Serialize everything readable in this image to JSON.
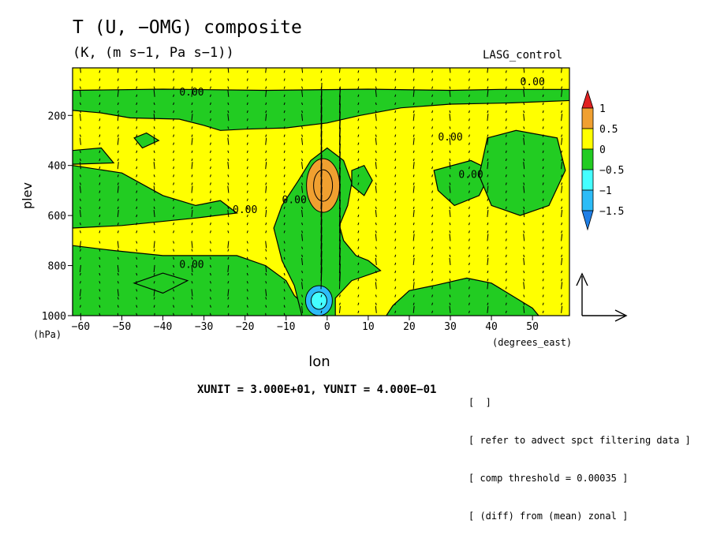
{
  "header": {
    "title": "T (U, −OMG) composite",
    "units": "(K, (m s−1, Pa s−1))",
    "model": "LASG_control"
  },
  "footer": {
    "unit_line": "XUNIT = 3.000E+01, YUNIT = 4.000E−01",
    "notes": [
      "[  ]",
      "[ refer to advect spct filtering data ]",
      "[ comp threshold = 0.00035 ]",
      "[ (diff) from (mean) zonal ]"
    ]
  },
  "colors": {
    "level_-1.5_below": "#1f7fe6",
    "level_-1.5_-1": "#2cbcf7",
    "level_-1_-0.5": "#44ffff",
    "level_-0.5_0": "#22cc22",
    "level_0_0.5": "#ffff00",
    "level_0.5_1": "#f0a030",
    "level_1_above": "#e02020"
  },
  "chart_data": {
    "type": "heatmap",
    "title": "T (U, −OMG) composite",
    "xlabel": "lon",
    "xunit_label": "(degrees_east)",
    "ylabel": "plev",
    "yunit_label": "(hPa)",
    "xlim": [
      -62,
      59
    ],
    "ylim": [
      1000,
      10
    ],
    "x_ticks": [
      -60,
      -50,
      -40,
      -30,
      -20,
      -10,
      0,
      10,
      20,
      30,
      40,
      50
    ],
    "y_ticks": [
      200,
      400,
      600,
      800,
      1000
    ],
    "y_tick_labels": [
      "200",
      "400",
      "600",
      "800",
      "1000"
    ],
    "colorbar": {
      "labels": [
        "1",
        "0.5",
        "0",
        "−0.5",
        "−1",
        "−1.5"
      ],
      "levels": [
        1,
        0.5,
        0,
        -0.5,
        -1,
        -1.5
      ]
    },
    "contour_labels": [
      {
        "text": "0.00",
        "lon": -33,
        "plev": 120
      },
      {
        "text": "0.00",
        "lon": 50,
        "plev": 80
      },
      {
        "text": "0.00",
        "lon": 30,
        "plev": 300
      },
      {
        "text": "0.00",
        "lon": 35,
        "plev": 450
      },
      {
        "text": "0.00",
        "lon": -8,
        "plev": 550
      },
      {
        "text": "0.00",
        "lon": -20,
        "plev": 590
      },
      {
        "text": "0.00",
        "lon": -33,
        "plev": 810
      }
    ],
    "notable_features": [
      {
        "description": "warm anomaly",
        "lon": -1,
        "plev": 480,
        "value": 0.8
      },
      {
        "description": "cold anomaly",
        "lon": -2,
        "plev": 940,
        "value": -1.2
      }
    ],
    "reference_vector": {
      "xunit": 30,
      "yunit": 0.4
    }
  }
}
